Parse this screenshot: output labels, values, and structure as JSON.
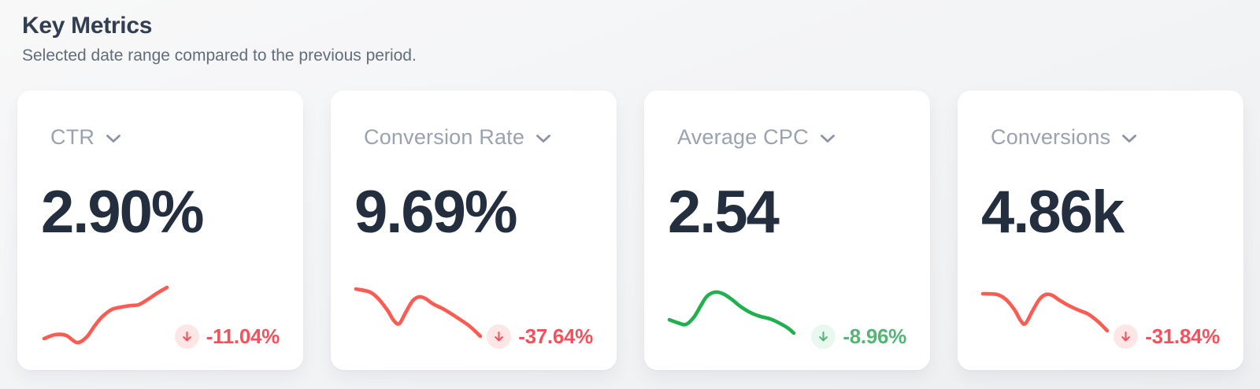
{
  "header": {
    "title": "Key Metrics",
    "subtitle": "Selected date range compared to the previous period."
  },
  "colors": {
    "page_bg_top": "#f8f8f9",
    "page_bg_bottom": "#edeff1",
    "card_bg": "#ffffff",
    "title_text": "#323e52",
    "subtitle_text": "#626d7c",
    "metric_label_text": "#9aa2b1",
    "metric_value_text": "#232e3f",
    "negative_red": "#f4515c",
    "negative_line_red": "#fa5c54",
    "negative_badge_bg": "#fde7e6",
    "positive_green_text": "#54b576",
    "positive_line_green": "#21b04e",
    "positive_badge_bg": "#e8f8ee"
  },
  "cards": [
    {
      "label": "CTR",
      "value": "2.90%",
      "change": "-11.04%",
      "direction": "down",
      "sentiment": "negative",
      "line_color": "#fa5c54",
      "change_color": "#f4515c",
      "badge_bg": "#fde7e6",
      "spark": {
        "points": [
          [
            2,
            76
          ],
          [
            16,
            71
          ],
          [
            30,
            72
          ],
          [
            44,
            81
          ],
          [
            56,
            74
          ],
          [
            66,
            60
          ],
          [
            76,
            48
          ],
          [
            88,
            39
          ],
          [
            100,
            36
          ],
          [
            112,
            34
          ],
          [
            122,
            33
          ],
          [
            134,
            26
          ],
          [
            146,
            18
          ],
          [
            158,
            11
          ]
        ]
      }
    },
    {
      "label": "Conversion Rate",
      "value": "9.69%",
      "change": "-37.64%",
      "direction": "down",
      "sentiment": "negative",
      "line_color": "#fa5c54",
      "change_color": "#f4515c",
      "badge_bg": "#fde7e6",
      "spark": {
        "points": [
          [
            0,
            13
          ],
          [
            18,
            17
          ],
          [
            29,
            26
          ],
          [
            40,
            40
          ],
          [
            48,
            53
          ],
          [
            55,
            57
          ],
          [
            63,
            43
          ],
          [
            72,
            28
          ],
          [
            80,
            23
          ],
          [
            88,
            25
          ],
          [
            98,
            32
          ],
          [
            112,
            39
          ],
          [
            128,
            49
          ],
          [
            144,
            60
          ],
          [
            158,
            73
          ]
        ]
      }
    },
    {
      "label": "Average CPC",
      "value": "2.54",
      "change": "-8.96%",
      "direction": "down",
      "sentiment": "positive",
      "line_color": "#21b04e",
      "change_color": "#54b576",
      "badge_bg": "#e8f8ee",
      "spark": {
        "points": [
          [
            0,
            52
          ],
          [
            11,
            56
          ],
          [
            21,
            58
          ],
          [
            31,
            49
          ],
          [
            40,
            34
          ],
          [
            48,
            22
          ],
          [
            58,
            17
          ],
          [
            68,
            19
          ],
          [
            79,
            26
          ],
          [
            90,
            35
          ],
          [
            103,
            43
          ],
          [
            116,
            48
          ],
          [
            128,
            51
          ],
          [
            141,
            57
          ],
          [
            151,
            63
          ],
          [
            158,
            69
          ]
        ]
      }
    },
    {
      "label": "Conversions",
      "value": "4.86k",
      "change": "-31.84%",
      "direction": "down",
      "sentiment": "negative",
      "line_color": "#fa5c54",
      "change_color": "#f4515c",
      "badge_bg": "#fde7e6",
      "spark": {
        "points": [
          [
            0,
            19
          ],
          [
            18,
            20
          ],
          [
            29,
            26
          ],
          [
            40,
            39
          ],
          [
            48,
            53
          ],
          [
            54,
            57
          ],
          [
            63,
            41
          ],
          [
            72,
            26
          ],
          [
            80,
            20
          ],
          [
            88,
            21
          ],
          [
            97,
            27
          ],
          [
            109,
            34
          ],
          [
            122,
            40
          ],
          [
            134,
            45
          ],
          [
            147,
            55
          ],
          [
            158,
            66
          ]
        ]
      }
    }
  ],
  "chart_data": [
    {
      "type": "line",
      "title": "CTR sparkline",
      "trend": "rising",
      "series": [
        {
          "name": "CTR",
          "values": [
            14,
            19,
            18,
            9,
            16,
            30,
            42,
            51,
            54,
            56,
            57,
            64,
            72,
            79
          ]
        }
      ]
    },
    {
      "type": "line",
      "title": "Conversion Rate sparkline",
      "trend": "falling",
      "series": [
        {
          "name": "Conversion Rate",
          "values": [
            77,
            73,
            64,
            50,
            37,
            33,
            47,
            62,
            67,
            65,
            58,
            51,
            41,
            30,
            17
          ]
        }
      ]
    },
    {
      "type": "line",
      "title": "Average CPC sparkline",
      "trend": "rise then fall",
      "series": [
        {
          "name": "Average CPC",
          "values": [
            38,
            34,
            32,
            41,
            56,
            68,
            73,
            71,
            64,
            55,
            47,
            42,
            39,
            33,
            27,
            21
          ]
        }
      ]
    },
    {
      "type": "line",
      "title": "Conversions sparkline",
      "trend": "falling",
      "series": [
        {
          "name": "Conversions",
          "values": [
            71,
            70,
            64,
            51,
            37,
            33,
            49,
            64,
            70,
            69,
            63,
            56,
            50,
            45,
            35,
            24
          ]
        }
      ]
    }
  ]
}
